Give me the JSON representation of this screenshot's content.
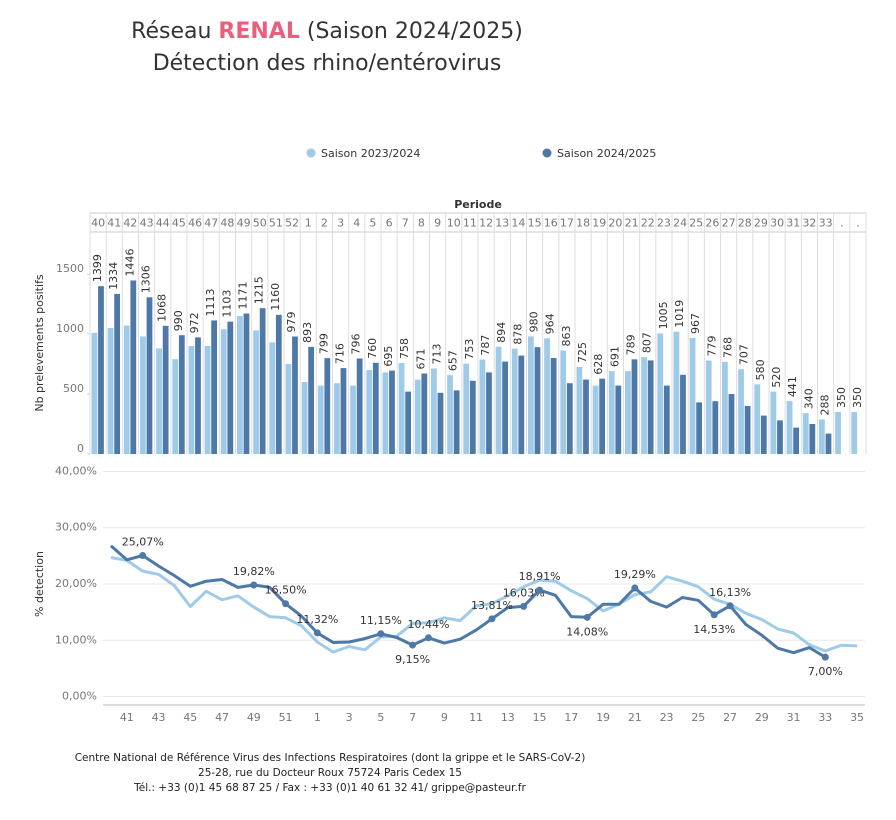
{
  "title_prefix": "Réseau",
  "title_highlight": "RENAL",
  "title_suffix": "(Saison 2024/2025)",
  "subtitle": "Détection des rhino/entérovirus",
  "footer": [
    "Centre National de Référence Virus des Infections Respiratoires (dont la grippe et le SARS-CoV-2)",
    "25-28, rue du Docteur Roux 75724 Paris Cedex 15",
    "Tél.: +33 (0)1 45 68 87 25 / Fax : +33 (0)1  40 61 32 41/ grippe@pasteur.fr"
  ],
  "chart_data": [
    {
      "type": "bar",
      "xlabel": "Periode",
      "ylabel": "Nb prelevements positifs",
      "legend": "top",
      "grid": false,
      "categories": [
        40,
        41,
        42,
        43,
        44,
        45,
        46,
        47,
        48,
        49,
        50,
        51,
        52,
        1,
        2,
        3,
        4,
        5,
        6,
        7,
        8,
        9,
        10,
        11,
        12,
        13,
        14,
        15,
        16,
        17,
        18,
        19,
        20,
        21,
        22,
        23,
        24,
        25,
        26,
        27,
        28,
        29,
        30,
        31,
        32,
        33,
        ".",
        "."
      ],
      "ylim": [
        0,
        1850
      ],
      "yticks": [
        0,
        500,
        1000,
        1500
      ],
      "series": [
        {
          "name": "Saison 2023/2024",
          "color": "#a0cbe8",
          "values": [
            1010,
            1050,
            1070,
            980,
            880,
            790,
            900,
            900,
            1040,
            1150,
            1030,
            930,
            750,
            600,
            570,
            590,
            570,
            700,
            680,
            758,
            620,
            713,
            657,
            753,
            787,
            894,
            878,
            980,
            964,
            863,
            725,
            570,
            691,
            690,
            807,
            1005,
            1019,
            967,
            779,
            768,
            707,
            580,
            520,
            441,
            340,
            288,
            350,
            350
          ]
        },
        {
          "name": "Saison 2024/2025",
          "color": "#4e79a7",
          "values": [
            1399,
            1334,
            1446,
            1306,
            1068,
            990,
            972,
            1113,
            1103,
            1171,
            1215,
            1160,
            979,
            893,
            799,
            716,
            796,
            760,
            695,
            520,
            671,
            510,
            530,
            610,
            680,
            770,
            820,
            890,
            800,
            590,
            620,
            628,
            570,
            789,
            780,
            570,
            660,
            430,
            440,
            500,
            400,
            320,
            280,
            220,
            250,
            170,
            null,
            null
          ]
        }
      ]
    },
    {
      "type": "line",
      "ylabel": "% detection",
      "grid": true,
      "categories": [
        null,
        41,
        null,
        43,
        null,
        45,
        null,
        47,
        null,
        49,
        null,
        51,
        null,
        1,
        null,
        3,
        null,
        5,
        null,
        7,
        null,
        9,
        null,
        11,
        null,
        13,
        null,
        15,
        null,
        17,
        null,
        19,
        null,
        21,
        null,
        23,
        null,
        25,
        null,
        27,
        null,
        29,
        null,
        31,
        null,
        33,
        null,
        35
      ],
      "ylim": [
        -1.5,
        41.5
      ],
      "yticks": [
        {
          "value": 0,
          "label": "0,00%"
        },
        {
          "value": 10,
          "label": "10,00%"
        },
        {
          "value": 20,
          "label": "20,00%"
        },
        {
          "value": 30,
          "label": "30,00%"
        },
        {
          "value": 40,
          "label": "40,00%"
        }
      ],
      "series": [
        {
          "name": "Saison 2023/2024",
          "color": "#a0cbe8",
          "values": [
            24.7,
            24.2,
            22.3,
            21.7,
            19.7,
            16.0,
            18.7,
            17.2,
            17.9,
            15.9,
            14.2,
            14.0,
            12.6,
            9.7,
            7.9,
            8.9,
            8.3,
            10.6,
            10.7,
            13.0,
            13.1,
            14.0,
            13.5,
            16.1,
            16.5,
            17.9,
            19.5,
            20.7,
            20.5,
            18.8,
            17.4,
            15.2,
            16.4,
            18.1,
            18.6,
            21.3,
            20.5,
            19.5,
            17.3,
            16.4,
            14.8,
            13.7,
            12.0,
            11.3,
            9.2,
            8.1,
            9.1,
            9.0
          ]
        },
        {
          "name": "Saison 2024/2025",
          "color": "#4e79a7",
          "values": [
            26.8,
            24.3,
            25.07,
            23.2,
            21.5,
            19.6,
            20.5,
            20.8,
            19.4,
            19.82,
            19.4,
            16.5,
            14.3,
            11.32,
            9.6,
            9.7,
            10.3,
            11.15,
            10.5,
            9.15,
            10.44,
            9.5,
            10.2,
            11.8,
            13.81,
            15.8,
            16.03,
            18.91,
            18.0,
            14.2,
            14.08,
            16.4,
            16.4,
            19.29,
            16.9,
            15.9,
            17.6,
            17.1,
            14.53,
            16.13,
            12.8,
            10.9,
            8.6,
            7.8,
            8.7,
            7.0,
            null,
            null
          ],
          "value_labels": [
            null,
            null,
            "25,07%",
            null,
            null,
            null,
            null,
            null,
            null,
            "19,82%",
            null,
            "16,50%",
            null,
            "11,32%",
            null,
            null,
            null,
            "11,15%",
            null,
            "9,15%",
            "10,44%",
            null,
            null,
            null,
            "13,81%",
            null,
            "16,03%",
            "18,91%",
            null,
            null,
            "14,08%",
            null,
            null,
            "19,29%",
            null,
            null,
            null,
            null,
            "14,53%",
            "16,13%",
            null,
            null,
            null,
            null,
            null,
            "7,00%",
            null,
            null
          ]
        }
      ]
    }
  ]
}
